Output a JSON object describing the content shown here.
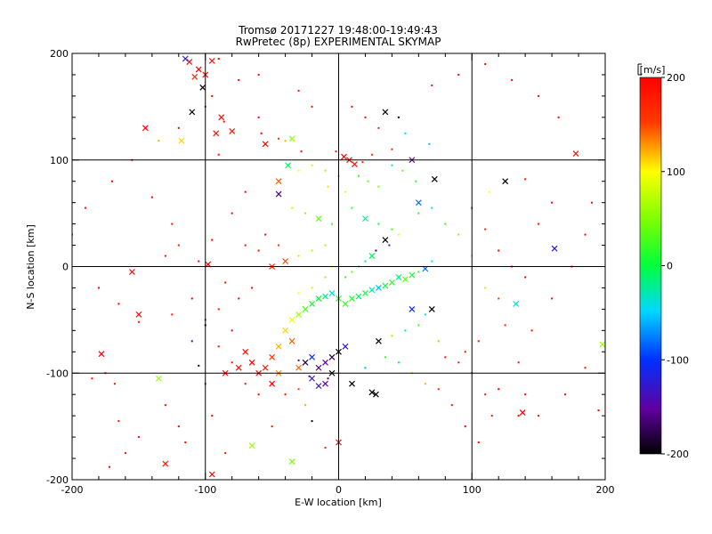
{
  "chart_data": {
    "type": "scatter",
    "title": "Tromsø 20171227 19:48:00-19:49:43",
    "subtitle": "RwPretec (8p) EXPERIMENTAL SKYMAP",
    "xlabel": "E-W location [km]",
    "ylabel": "N-S location [km]",
    "xlim": [
      -200,
      200
    ],
    "ylim": [
      -200,
      200
    ],
    "x_ticks": [
      "-200",
      "-100",
      "0",
      "100",
      "200"
    ],
    "y_ticks": [
      "-200",
      "-100",
      "0",
      "100",
      "200"
    ],
    "grid": true,
    "colorbar": {
      "label": "[m/s]",
      "range": [
        -200,
        200
      ],
      "ticks": [
        "200",
        "100",
        "0",
        "-100",
        "-200"
      ]
    },
    "marker_styles": [
      "dot",
      "cross"
    ],
    "points": [
      [
        -112,
        192,
        190,
        "x"
      ],
      [
        -105,
        185,
        200,
        "x"
      ],
      [
        -100,
        180,
        180,
        "x"
      ],
      [
        -95,
        193,
        195,
        "x"
      ],
      [
        -108,
        178,
        170,
        "x"
      ],
      [
        -90,
        195,
        200,
        "."
      ],
      [
        -115,
        195,
        -120,
        "x"
      ],
      [
        -102,
        168,
        -200,
        "x"
      ],
      [
        -110,
        145,
        -200,
        "x"
      ],
      [
        -118,
        118,
        110,
        "x"
      ],
      [
        -88,
        140,
        190,
        "x"
      ],
      [
        -92,
        125,
        190,
        "x"
      ],
      [
        -80,
        127,
        180,
        "x"
      ],
      [
        -86,
        136,
        190,
        "."
      ],
      [
        -120,
        130,
        200,
        "."
      ],
      [
        -55,
        115,
        200,
        "x"
      ],
      [
        -40,
        118,
        120,
        "."
      ],
      [
        -35,
        120,
        60,
        "x"
      ],
      [
        -38,
        95,
        -10,
        "x"
      ],
      [
        -30,
        90,
        100,
        "."
      ],
      [
        -45,
        80,
        140,
        "x"
      ],
      [
        -20,
        95,
        80,
        "."
      ],
      [
        -10,
        90,
        60,
        "."
      ],
      [
        0,
        85,
        30,
        "."
      ],
      [
        8,
        100,
        195,
        "x"
      ],
      [
        12,
        96,
        185,
        "x"
      ],
      [
        4,
        103,
        200,
        "x"
      ],
      [
        18,
        98,
        170,
        "."
      ],
      [
        -2,
        108,
        190,
        "."
      ],
      [
        25,
        105,
        160,
        "."
      ],
      [
        15,
        85,
        20,
        "."
      ],
      [
        22,
        80,
        40,
        "."
      ],
      [
        30,
        75,
        50,
        "."
      ],
      [
        5,
        70,
        90,
        "."
      ],
      [
        -8,
        75,
        110,
        "."
      ],
      [
        40,
        95,
        -10,
        "."
      ],
      [
        55,
        100,
        -150,
        "x"
      ],
      [
        68,
        115,
        -60,
        "."
      ],
      [
        72,
        82,
        -200,
        "x"
      ],
      [
        60,
        60,
        -80,
        "x"
      ],
      [
        70,
        55,
        -40,
        "."
      ],
      [
        45,
        140,
        -200,
        "."
      ],
      [
        35,
        145,
        -200,
        "x"
      ],
      [
        50,
        125,
        -50,
        "."
      ],
      [
        -28,
        108,
        190,
        "."
      ],
      [
        125,
        80,
        -200,
        "x"
      ],
      [
        140,
        82,
        180,
        "."
      ],
      [
        113,
        70,
        100,
        "."
      ],
      [
        178,
        106,
        190,
        "x"
      ],
      [
        -58,
        125,
        200,
        "."
      ],
      [
        -60,
        140,
        200,
        "."
      ],
      [
        -45,
        120,
        170,
        "."
      ],
      [
        -90,
        105,
        190,
        "."
      ],
      [
        -45,
        68,
        -160,
        "x"
      ],
      [
        -35,
        55,
        80,
        "."
      ],
      [
        -25,
        50,
        60,
        "."
      ],
      [
        -15,
        45,
        40,
        "x"
      ],
      [
        -5,
        40,
        30,
        "."
      ],
      [
        10,
        55,
        20,
        "."
      ],
      [
        20,
        45,
        -20,
        "x"
      ],
      [
        30,
        40,
        0,
        "."
      ],
      [
        40,
        35,
        30,
        "."
      ],
      [
        35,
        25,
        -200,
        "x"
      ],
      [
        38,
        20,
        -120,
        "."
      ],
      [
        45,
        30,
        90,
        "."
      ],
      [
        60,
        50,
        20,
        "."
      ],
      [
        -10,
        20,
        60,
        "."
      ],
      [
        -20,
        15,
        70,
        "."
      ],
      [
        -30,
        10,
        110,
        "."
      ],
      [
        -40,
        5,
        150,
        "x"
      ],
      [
        -50,
        0,
        180,
        "x"
      ],
      [
        -60,
        15,
        190,
        "."
      ],
      [
        -70,
        20,
        190,
        "."
      ],
      [
        -95,
        25,
        200,
        "."
      ],
      [
        -98,
        2,
        200,
        "x"
      ],
      [
        -105,
        5,
        200,
        "."
      ],
      [
        -130,
        10,
        190,
        "."
      ],
      [
        -155,
        -5,
        200,
        "x"
      ],
      [
        -150,
        -45,
        200,
        "x"
      ],
      [
        -165,
        -35,
        200,
        "."
      ],
      [
        -178,
        -82,
        200,
        "x"
      ],
      [
        -150,
        -52,
        190,
        "."
      ],
      [
        -125,
        -45,
        190,
        "."
      ],
      [
        -110,
        -30,
        200,
        "."
      ],
      [
        -100,
        -50,
        200,
        "."
      ],
      [
        -90,
        -40,
        190,
        "."
      ],
      [
        -80,
        -60,
        200,
        "."
      ],
      [
        -70,
        -80,
        190,
        "x"
      ],
      [
        -65,
        -90,
        200,
        "x"
      ],
      [
        -75,
        -95,
        200,
        "x"
      ],
      [
        -85,
        -100,
        195,
        "x"
      ],
      [
        -60,
        -100,
        200,
        "x"
      ],
      [
        -55,
        -95,
        190,
        "x"
      ],
      [
        -50,
        -85,
        150,
        "x"
      ],
      [
        -45,
        -75,
        120,
        "x"
      ],
      [
        -40,
        -60,
        110,
        "x"
      ],
      [
        -35,
        -50,
        90,
        "x"
      ],
      [
        -30,
        -45,
        60,
        "x"
      ],
      [
        -25,
        -40,
        30,
        "x"
      ],
      [
        -20,
        -35,
        10,
        "x"
      ],
      [
        -15,
        -30,
        0,
        "x"
      ],
      [
        -10,
        -28,
        -20,
        "x"
      ],
      [
        -5,
        -25,
        -40,
        "x"
      ],
      [
        0,
        -30,
        10,
        "x"
      ],
      [
        5,
        -35,
        20,
        "x"
      ],
      [
        10,
        -30,
        15,
        "x"
      ],
      [
        15,
        -28,
        -10,
        "x"
      ],
      [
        20,
        -25,
        5,
        "x"
      ],
      [
        25,
        -22,
        -30,
        "x"
      ],
      [
        30,
        -20,
        -60,
        "x"
      ],
      [
        35,
        -18,
        0,
        "x"
      ],
      [
        40,
        -15,
        20,
        "x"
      ],
      [
        45,
        -10,
        -20,
        "x"
      ],
      [
        50,
        -12,
        40,
        "x"
      ],
      [
        55,
        -8,
        10,
        "x"
      ],
      [
        60,
        -5,
        30,
        "."
      ],
      [
        65,
        -2,
        -80,
        "x"
      ],
      [
        70,
        5,
        -40,
        "."
      ],
      [
        5,
        -10,
        30,
        "."
      ],
      [
        10,
        -5,
        40,
        "."
      ],
      [
        15,
        0,
        20,
        "."
      ],
      [
        20,
        5,
        -10,
        "."
      ],
      [
        25,
        10,
        -5,
        "x"
      ],
      [
        28,
        15,
        -180,
        "."
      ],
      [
        -5,
        0,
        70,
        "."
      ],
      [
        -10,
        -10,
        60,
        "."
      ],
      [
        -20,
        -20,
        80,
        "."
      ],
      [
        -30,
        -25,
        100,
        "."
      ],
      [
        -35,
        -70,
        140,
        "x"
      ],
      [
        -45,
        -100,
        130,
        "x"
      ],
      [
        -30,
        -95,
        140,
        "x"
      ],
      [
        -20,
        -85,
        -100,
        "x"
      ],
      [
        -10,
        -90,
        -150,
        "x"
      ],
      [
        -5,
        -85,
        -180,
        "x"
      ],
      [
        0,
        -80,
        -200,
        "x"
      ],
      [
        5,
        -75,
        -120,
        "x"
      ],
      [
        -15,
        -95,
        -160,
        "x"
      ],
      [
        -20,
        -105,
        -130,
        "x"
      ],
      [
        -10,
        -110,
        -150,
        "x"
      ],
      [
        -5,
        -100,
        -200,
        "x"
      ],
      [
        -25,
        -90,
        -180,
        "x"
      ],
      [
        -30,
        -88,
        -150,
        "."
      ],
      [
        -22,
        -103,
        -120,
        "."
      ],
      [
        -15,
        -112,
        -130,
        "x"
      ],
      [
        -8,
        -105,
        -160,
        "."
      ],
      [
        10,
        -110,
        -200,
        "x"
      ],
      [
        25,
        -118,
        -200,
        "x"
      ],
      [
        28,
        -120,
        -200,
        "x"
      ],
      [
        20,
        -95,
        -60,
        "."
      ],
      [
        30,
        -70,
        -200,
        "x"
      ],
      [
        40,
        -65,
        60,
        "."
      ],
      [
        50,
        -60,
        -20,
        "."
      ],
      [
        60,
        -55,
        30,
        "."
      ],
      [
        55,
        -40,
        -100,
        "x"
      ],
      [
        65,
        -45,
        -40,
        "."
      ],
      [
        70,
        -40,
        -200,
        "x"
      ],
      [
        75,
        -70,
        120,
        "."
      ],
      [
        80,
        -85,
        170,
        "."
      ],
      [
        90,
        -90,
        180,
        "."
      ],
      [
        95,
        -80,
        190,
        "."
      ],
      [
        105,
        -70,
        190,
        "."
      ],
      [
        100,
        -100,
        170,
        "."
      ],
      [
        110,
        -120,
        190,
        "."
      ],
      [
        120,
        -115,
        200,
        "."
      ],
      [
        135,
        -90,
        190,
        "."
      ],
      [
        140,
        -120,
        200,
        "."
      ],
      [
        138,
        -137,
        200,
        "x"
      ],
      [
        135,
        -140,
        200,
        "."
      ],
      [
        115,
        -140,
        190,
        "."
      ],
      [
        105,
        -165,
        200,
        "."
      ],
      [
        133,
        -35,
        -40,
        "x"
      ],
      [
        162,
        17,
        -120,
        "x"
      ],
      [
        198,
        -73,
        60,
        "x"
      ],
      [
        195,
        -135,
        200,
        "."
      ],
      [
        -135,
        -105,
        60,
        "x"
      ],
      [
        -130,
        -130,
        200,
        "."
      ],
      [
        -120,
        -150,
        200,
        "."
      ],
      [
        -150,
        -160,
        200,
        "."
      ],
      [
        -165,
        -145,
        190,
        "."
      ],
      [
        -175,
        -100,
        190,
        "."
      ],
      [
        -185,
        -105,
        200,
        "."
      ],
      [
        -168,
        -110,
        190,
        "."
      ],
      [
        -160,
        -175,
        190,
        "."
      ],
      [
        -172,
        -188,
        200,
        "."
      ],
      [
        -130,
        -185,
        180,
        "x"
      ],
      [
        -115,
        -165,
        200,
        "."
      ],
      [
        -100,
        -110,
        190,
        "."
      ],
      [
        -95,
        -140,
        200,
        "."
      ],
      [
        -85,
        -175,
        190,
        "."
      ],
      [
        -65,
        -168,
        60,
        "x"
      ],
      [
        -50,
        -150,
        190,
        "."
      ],
      [
        -35,
        -183,
        50,
        "x"
      ],
      [
        -20,
        -145,
        -200,
        "."
      ],
      [
        0,
        -165,
        190,
        "x"
      ],
      [
        -10,
        -170,
        180,
        "."
      ],
      [
        -95,
        -195,
        200,
        "x"
      ],
      [
        -100,
        -55,
        -200,
        "."
      ],
      [
        -110,
        -70,
        -150,
        "."
      ],
      [
        -105,
        -93,
        -200,
        "."
      ],
      [
        -135,
        118,
        120,
        "."
      ],
      [
        -145,
        130,
        200,
        "x"
      ],
      [
        -100,
        150,
        200,
        "."
      ],
      [
        -95,
        160,
        200,
        "."
      ],
      [
        -75,
        175,
        190,
        "."
      ],
      [
        -60,
        180,
        200,
        "."
      ],
      [
        -30,
        165,
        190,
        "."
      ],
      [
        -20,
        150,
        180,
        "."
      ],
      [
        10,
        150,
        200,
        "."
      ],
      [
        20,
        140,
        190,
        "."
      ],
      [
        30,
        130,
        180,
        "."
      ],
      [
        40,
        110,
        160,
        "."
      ],
      [
        48,
        90,
        40,
        "."
      ],
      [
        58,
        80,
        10,
        "."
      ],
      [
        80,
        40,
        30,
        "."
      ],
      [
        90,
        30,
        50,
        "."
      ],
      [
        100,
        10,
        70,
        "."
      ],
      [
        110,
        -20,
        110,
        "."
      ],
      [
        120,
        -30,
        150,
        "."
      ],
      [
        125,
        -55,
        170,
        "."
      ],
      [
        150,
        40,
        190,
        "."
      ],
      [
        160,
        60,
        200,
        "."
      ],
      [
        145,
        -60,
        190,
        "."
      ],
      [
        -200,
        30,
        200,
        "."
      ],
      [
        -190,
        55,
        200,
        "."
      ],
      [
        -180,
        -20,
        200,
        "."
      ],
      [
        -170,
        80,
        200,
        "."
      ],
      [
        -155,
        100,
        190,
        "."
      ],
      [
        -140,
        65,
        200,
        "."
      ],
      [
        -125,
        40,
        190,
        "."
      ],
      [
        -120,
        20,
        180,
        "."
      ],
      [
        -80,
        50,
        200,
        "."
      ],
      [
        -70,
        70,
        200,
        "."
      ],
      [
        -55,
        30,
        190,
        "."
      ],
      [
        -45,
        20,
        160,
        "."
      ],
      [
        -65,
        -20,
        200,
        "."
      ],
      [
        -75,
        -30,
        190,
        "."
      ],
      [
        -85,
        -15,
        200,
        "."
      ],
      [
        -90,
        -75,
        190,
        "."
      ],
      [
        -80,
        -90,
        200,
        "."
      ],
      [
        -70,
        -110,
        190,
        "."
      ],
      [
        -60,
        -120,
        200,
        "."
      ],
      [
        -50,
        -110,
        200,
        "x"
      ],
      [
        -40,
        -120,
        190,
        "."
      ],
      [
        -30,
        -115,
        150,
        "."
      ],
      [
        -25,
        -130,
        120,
        "."
      ],
      [
        35,
        -85,
        20,
        "."
      ],
      [
        45,
        -90,
        -10,
        "."
      ],
      [
        55,
        -100,
        60,
        "."
      ],
      [
        65,
        -110,
        120,
        "."
      ],
      [
        75,
        -115,
        160,
        "."
      ],
      [
        85,
        -130,
        190,
        "."
      ],
      [
        95,
        -150,
        200,
        "."
      ],
      [
        150,
        -140,
        200,
        "."
      ],
      [
        170,
        -120,
        200,
        "."
      ],
      [
        185,
        -95,
        190,
        "."
      ],
      [
        100,
        55,
        190,
        "."
      ],
      [
        110,
        35,
        180,
        "."
      ],
      [
        120,
        15,
        200,
        "."
      ],
      [
        130,
        0,
        190,
        "."
      ],
      [
        140,
        -10,
        200,
        "."
      ],
      [
        160,
        -30,
        190,
        "."
      ],
      [
        175,
        0,
        200,
        "."
      ],
      [
        185,
        30,
        200,
        "."
      ],
      [
        190,
        60,
        190,
        "."
      ],
      [
        165,
        140,
        200,
        "."
      ],
      [
        150,
        160,
        200,
        "."
      ],
      [
        130,
        175,
        190,
        "."
      ],
      [
        110,
        190,
        200,
        "."
      ],
      [
        90,
        180,
        200,
        "."
      ],
      [
        70,
        170,
        190,
        "."
      ]
    ]
  }
}
